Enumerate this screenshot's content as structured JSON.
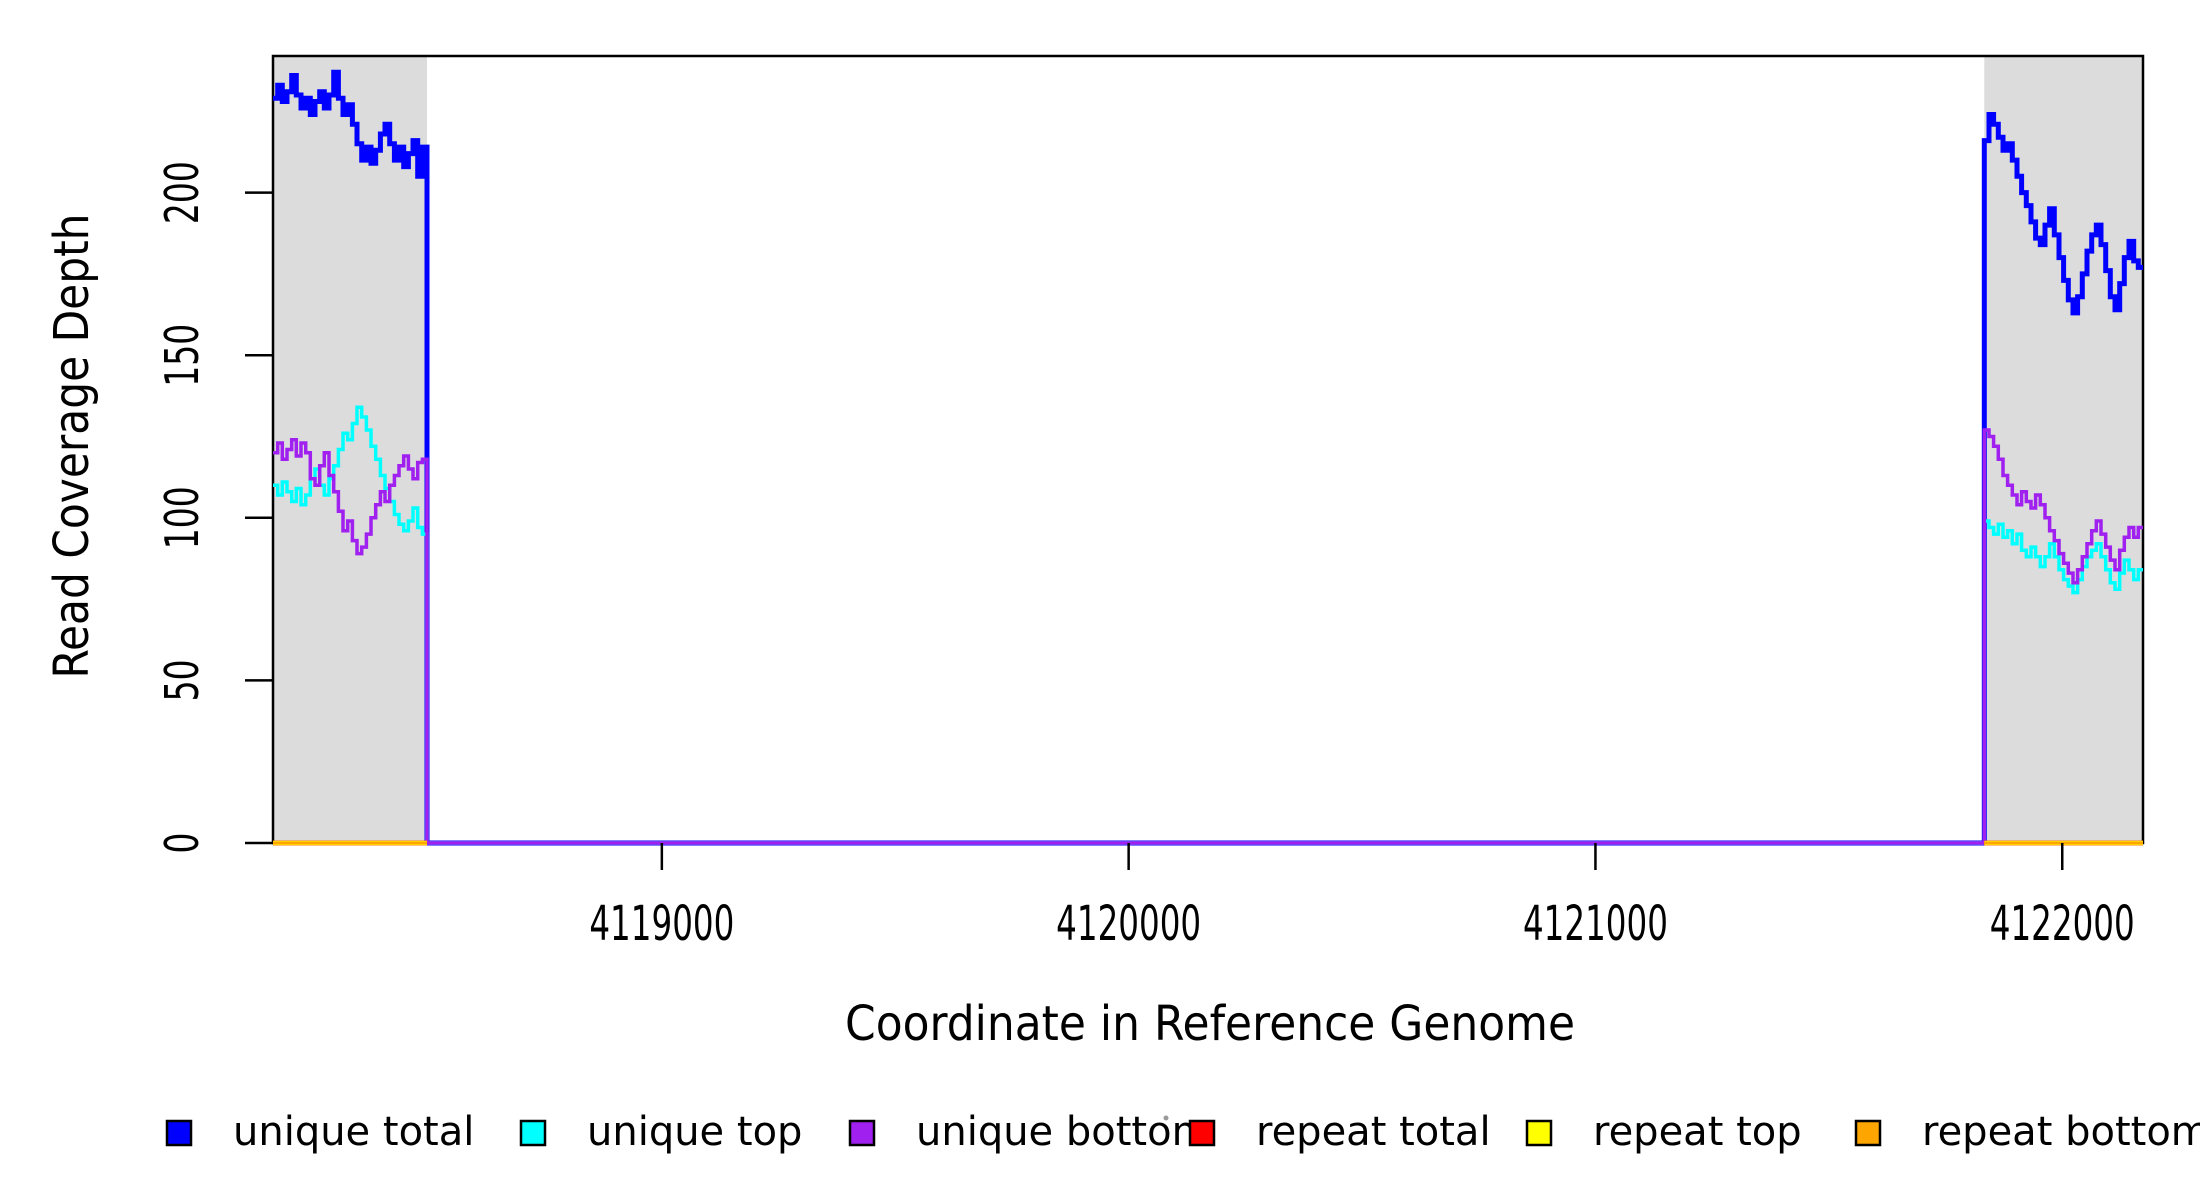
{
  "axes": {
    "x_label": "Coordinate in Reference Genome",
    "y_label": "Read Coverage Depth",
    "x_tick_labels": [
      "4119000",
      "4120000",
      "4121000",
      "4122000"
    ],
    "y_tick_labels": [
      "0",
      "50",
      "100",
      "150",
      "200"
    ]
  },
  "legend": {
    "items": [
      {
        "label": "unique total",
        "color": "#0000FF"
      },
      {
        "label": "unique top",
        "color": "#00FFFF"
      },
      {
        "label": "unique bottom",
        "color": "#A020F0"
      },
      {
        "label": "repeat total",
        "color": "#FF0000"
      },
      {
        "label": "repeat top",
        "color": "#FFFF00"
      },
      {
        "label": "repeat bottom",
        "color": "#FFA500"
      }
    ]
  },
  "chart_data": {
    "type": "line",
    "subtype": "step-coverage",
    "title": "",
    "xlabel": "Coordinate in Reference Genome",
    "ylabel": "Read Coverage Depth",
    "xlim": [
      4118167,
      4122173
    ],
    "ylim": [
      0,
      242
    ],
    "x_ticks": [
      4119000,
      4120000,
      4121000,
      4122000
    ],
    "y_ticks": [
      0,
      50,
      100,
      150,
      200
    ],
    "grid": false,
    "legend_position": "bottom",
    "bin_size_bp": 10,
    "shade_color": "#DCDCDC",
    "shaded_regions": [
      {
        "name": "repeat-region-left",
        "start": 4118167,
        "end": 4118497
      },
      {
        "name": "repeat-region-right",
        "start": 4121833,
        "end": 4122173
      }
    ],
    "series": [
      {
        "name": "unique total",
        "color": "#0000FF",
        "line_width": 5,
        "extent": "full",
        "region1_values": [
          229,
          233,
          228,
          231,
          236,
          230,
          226,
          229,
          224,
          228,
          231,
          226,
          230,
          237,
          229,
          224,
          227,
          221,
          215,
          210,
          214,
          209,
          213,
          218,
          221,
          215,
          210,
          214,
          208,
          212,
          216,
          205,
          214
        ],
        "middle_value": 0,
        "region2_values": [
          216,
          224,
          221,
          217,
          213,
          215,
          210,
          205,
          200,
          196,
          191,
          186,
          184,
          190,
          195,
          187,
          180,
          173,
          167,
          163,
          168,
          175,
          182,
          187,
          190,
          184,
          176,
          168,
          164,
          172,
          180,
          185,
          179,
          177
        ]
      },
      {
        "name": "unique top",
        "color": "#00FFFF",
        "line_width": 3.5,
        "extent": "full",
        "region1_values": [
          110,
          107,
          111,
          108,
          105,
          109,
          104,
          107,
          112,
          115,
          110,
          107,
          112,
          116,
          121,
          126,
          124,
          129,
          134,
          131,
          127,
          122,
          118,
          113,
          109,
          105,
          101,
          98,
          96,
          99,
          103,
          97,
          95
        ],
        "middle_value": 0,
        "region2_values": [
          99,
          97,
          95,
          98,
          94,
          96,
          92,
          95,
          90,
          88,
          91,
          88,
          85,
          88,
          92,
          88,
          84,
          81,
          79,
          77,
          81,
          85,
          88,
          90,
          92,
          88,
          84,
          80,
          78,
          83,
          87,
          84,
          81,
          84
        ]
      },
      {
        "name": "unique bottom",
        "color": "#A020F0",
        "line_width": 3.5,
        "extent": "full",
        "region1_values": [
          120,
          123,
          118,
          121,
          124,
          119,
          123,
          120,
          112,
          110,
          116,
          120,
          113,
          108,
          102,
          96,
          99,
          93,
          89,
          91,
          95,
          100,
          104,
          108,
          105,
          110,
          113,
          116,
          119,
          115,
          112,
          117,
          118
        ],
        "middle_value": 0,
        "region2_values": [
          127,
          125,
          122,
          118,
          113,
          110,
          107,
          104,
          108,
          105,
          103,
          107,
          104,
          100,
          96,
          93,
          89,
          86,
          83,
          80,
          84,
          88,
          92,
          96,
          99,
          95,
          91,
          87,
          84,
          90,
          94,
          97,
          94,
          97
        ]
      },
      {
        "name": "repeat total",
        "color": "#FF0000",
        "line_width": 5,
        "extent": "regions",
        "flat_value": 0
      },
      {
        "name": "repeat top",
        "color": "#FFFF00",
        "line_width": 4.5,
        "extent": "regions",
        "flat_value": 0
      },
      {
        "name": "repeat bottom",
        "color": "#FFA500",
        "line_width": 3,
        "extent": "regions",
        "flat_value": 0
      }
    ]
  }
}
